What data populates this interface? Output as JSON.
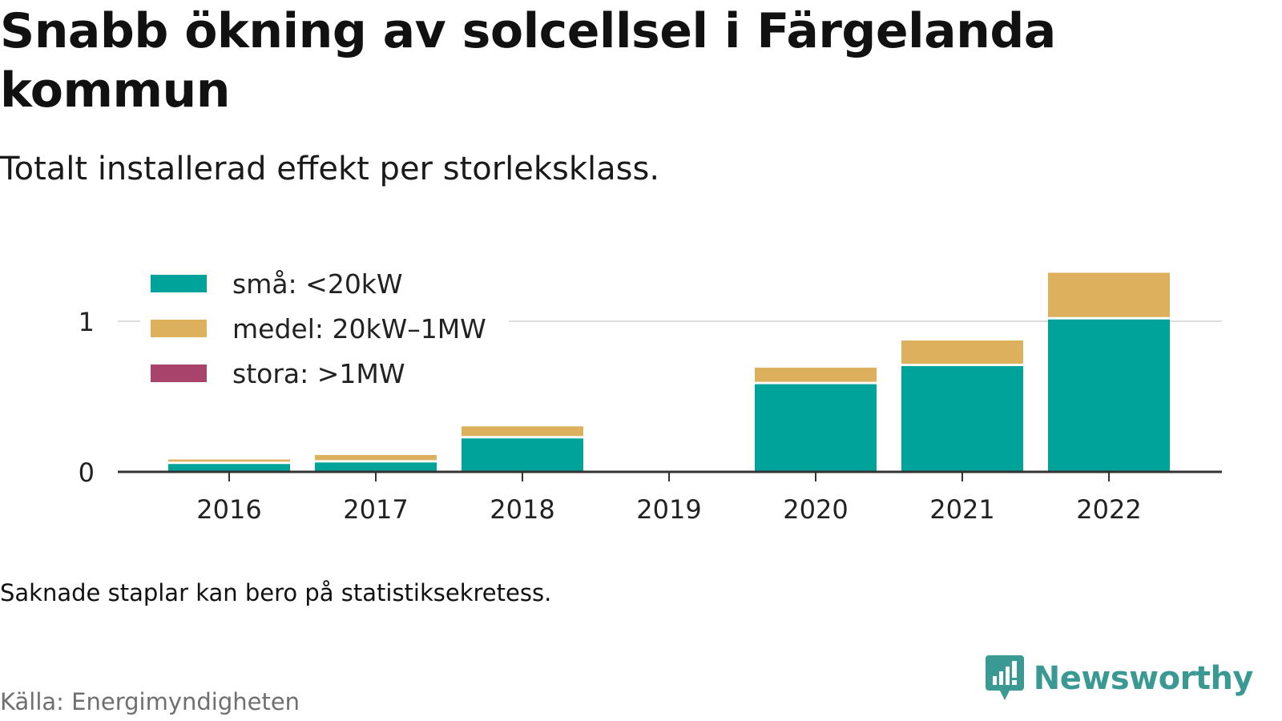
{
  "title": "Snabb ökning av solcellsel i Färgelanda kommun",
  "subtitle": "Totalt installerad effekt per storleksklass.",
  "note": "Saknade staplar kan bero på statistiksekretess.",
  "source": "Källa: Energimyndigheten",
  "brand": {
    "name": "Newsworthy",
    "icon": "newsworthy-logo-icon",
    "color": "#3a9a93"
  },
  "chart_data": {
    "type": "bar",
    "stacked": true,
    "categories": [
      "2016",
      "2017",
      "2018",
      "2019",
      "2020",
      "2021",
      "2022"
    ],
    "series": [
      {
        "name": "små: <20kW",
        "color": "#00a39a",
        "values": [
          0.06,
          0.07,
          0.23,
          0,
          0.59,
          0.71,
          1.02
        ]
      },
      {
        "name": "medel: 20kW–1MW",
        "color": "#dcb05c",
        "values": [
          0.03,
          0.05,
          0.08,
          0,
          0.11,
          0.17,
          0.31
        ]
      },
      {
        "name": "stora: >1MW",
        "color": "#a8436b",
        "values": [
          0,
          0,
          0,
          0,
          0,
          0,
          0
        ]
      }
    ],
    "yticks": [
      0,
      1
    ],
    "ylim": [
      0,
      1.35
    ],
    "legend_position": "top-left",
    "grid": true,
    "xlabel": "",
    "ylabel": ""
  }
}
